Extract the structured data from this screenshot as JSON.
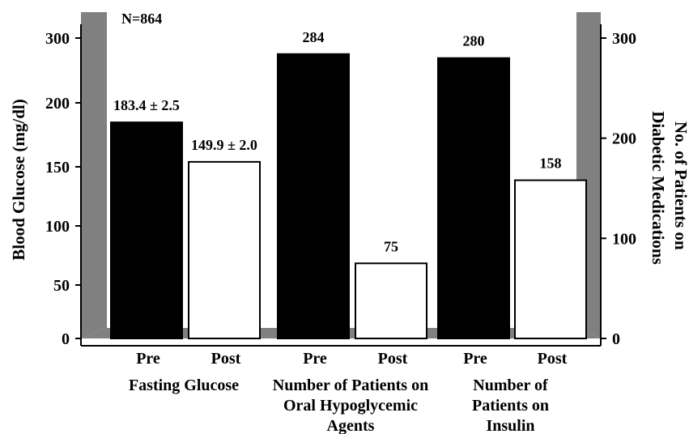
{
  "chart_data": {
    "type": "bar",
    "annotation": "N=864",
    "ylabel_left": "Blood Glucose (mg/dl)",
    "ylabel_right": [
      "No. of Patients on",
      "Diabetic Medications"
    ],
    "left_axis": {
      "ticks": [
        0,
        50,
        100,
        150,
        200,
        300
      ]
    },
    "right_axis": {
      "ylim": [
        0,
        300
      ],
      "ticks": [
        0,
        100,
        200,
        300
      ]
    },
    "groups": [
      {
        "label": [
          "Fasting Glucose"
        ],
        "axis": "left",
        "bars": [
          {
            "category": "Pre",
            "value": 183.4,
            "label": "183.4 ± 2.5",
            "fill": "#000000"
          },
          {
            "category": "Post",
            "value": 149.9,
            "label": "149.9 ± 2.0",
            "fill": "#ffffff"
          }
        ]
      },
      {
        "label": [
          "Number of Patients on",
          "Oral Hypoglycemic",
          "Agents"
        ],
        "axis": "right",
        "bars": [
          {
            "category": "Pre",
            "value": 284,
            "label": "284",
            "fill": "#000000"
          },
          {
            "category": "Post",
            "value": 75,
            "label": "75",
            "fill": "#ffffff"
          }
        ]
      },
      {
        "label": [
          "Number of",
          "Patients on",
          "Insulin"
        ],
        "axis": "right",
        "bars": [
          {
            "category": "Pre",
            "value": 280,
            "label": "280",
            "fill": "#000000"
          },
          {
            "category": "Post",
            "value": 158,
            "label": "158",
            "fill": "#ffffff"
          }
        ]
      }
    ],
    "wall_color": "#808080",
    "grid": false
  }
}
